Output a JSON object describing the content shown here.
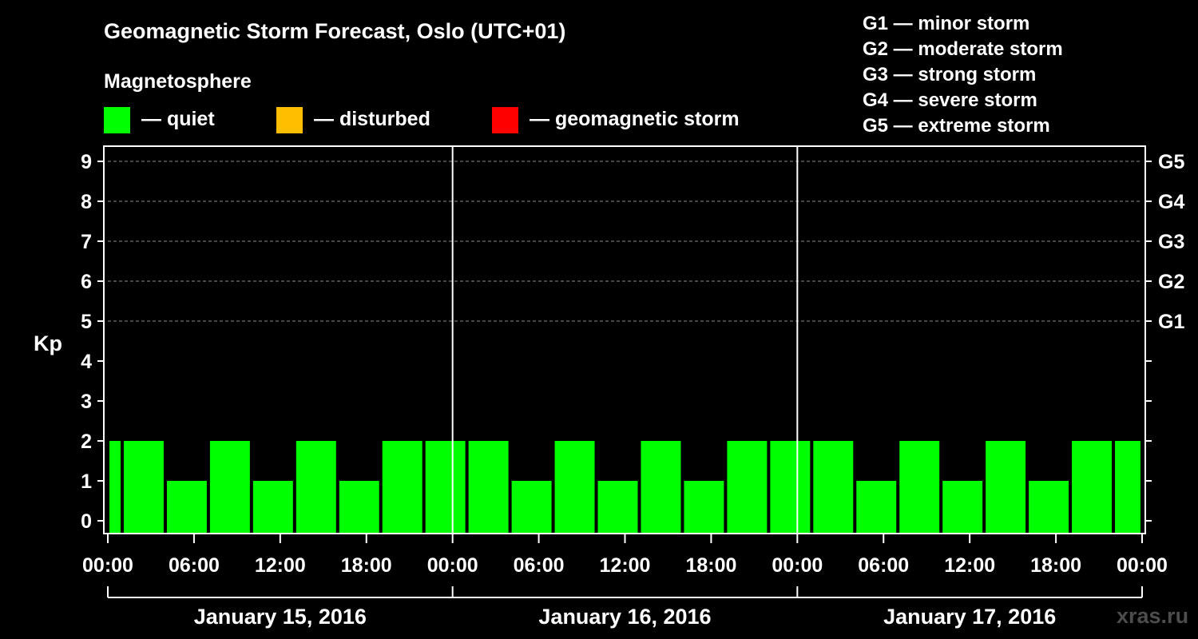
{
  "chart_data": {
    "type": "bar",
    "title": "Geomagnetic Storm Forecast, Oslo (UTC+01)",
    "legend_title": "Magnetosphere",
    "legend": [
      {
        "label": "— quiet",
        "color": "#00ff00"
      },
      {
        "label": "— disturbed",
        "color": "#ffbf00"
      },
      {
        "label": "— geomagnetic storm",
        "color": "#ff0000"
      }
    ],
    "g_scale": [
      "G1 — minor storm",
      "G2 — moderate storm",
      "G3 — strong storm",
      "G4 — severe storm",
      "G5 — extreme storm"
    ],
    "ylabel": "Kp",
    "ylim": [
      0,
      9
    ],
    "y_ticks": [
      "0",
      "1",
      "2",
      "3",
      "4",
      "5",
      "6",
      "7",
      "8",
      "9"
    ],
    "right_ticks": [
      {
        "kp": 5,
        "label": "G1"
      },
      {
        "kp": 6,
        "label": "G2"
      },
      {
        "kp": 7,
        "label": "G3"
      },
      {
        "kp": 8,
        "label": "G4"
      },
      {
        "kp": 9,
        "label": "G5"
      }
    ],
    "x_ticks": [
      "00:00",
      "06:00",
      "12:00",
      "18:00",
      "00:00",
      "06:00",
      "12:00",
      "18:00",
      "00:00",
      "06:00",
      "12:00",
      "18:00",
      "00:00"
    ],
    "days": [
      "January 15, 2016",
      "January 16, 2016",
      "January 17, 2016"
    ],
    "bar_color": "#00ff00",
    "bars": [
      {
        "start": -2,
        "end": 1,
        "value": 2
      },
      {
        "start": 1,
        "end": 4,
        "value": 2
      },
      {
        "start": 4,
        "end": 7,
        "value": 1
      },
      {
        "start": 7,
        "end": 10,
        "value": 2
      },
      {
        "start": 10,
        "end": 13,
        "value": 1
      },
      {
        "start": 13,
        "end": 16,
        "value": 2
      },
      {
        "start": 16,
        "end": 19,
        "value": 1
      },
      {
        "start": 19,
        "end": 22,
        "value": 2
      },
      {
        "start": 22,
        "end": 25,
        "value": 2
      },
      {
        "start": 25,
        "end": 28,
        "value": 2
      },
      {
        "start": 28,
        "end": 31,
        "value": 1
      },
      {
        "start": 31,
        "end": 34,
        "value": 2
      },
      {
        "start": 34,
        "end": 37,
        "value": 1
      },
      {
        "start": 37,
        "end": 40,
        "value": 2
      },
      {
        "start": 40,
        "end": 43,
        "value": 1
      },
      {
        "start": 43,
        "end": 46,
        "value": 2
      },
      {
        "start": 46,
        "end": 49,
        "value": 2
      },
      {
        "start": 49,
        "end": 52,
        "value": 2
      },
      {
        "start": 52,
        "end": 55,
        "value": 1
      },
      {
        "start": 55,
        "end": 58,
        "value": 2
      },
      {
        "start": 58,
        "end": 61,
        "value": 1
      },
      {
        "start": 61,
        "end": 64,
        "value": 2
      },
      {
        "start": 64,
        "end": 67,
        "value": 1
      },
      {
        "start": 67,
        "end": 70,
        "value": 2
      },
      {
        "start": 70,
        "end": 73,
        "value": 2
      }
    ],
    "x_range_hours": [
      0,
      72
    ],
    "watermark": "xras.ru"
  }
}
